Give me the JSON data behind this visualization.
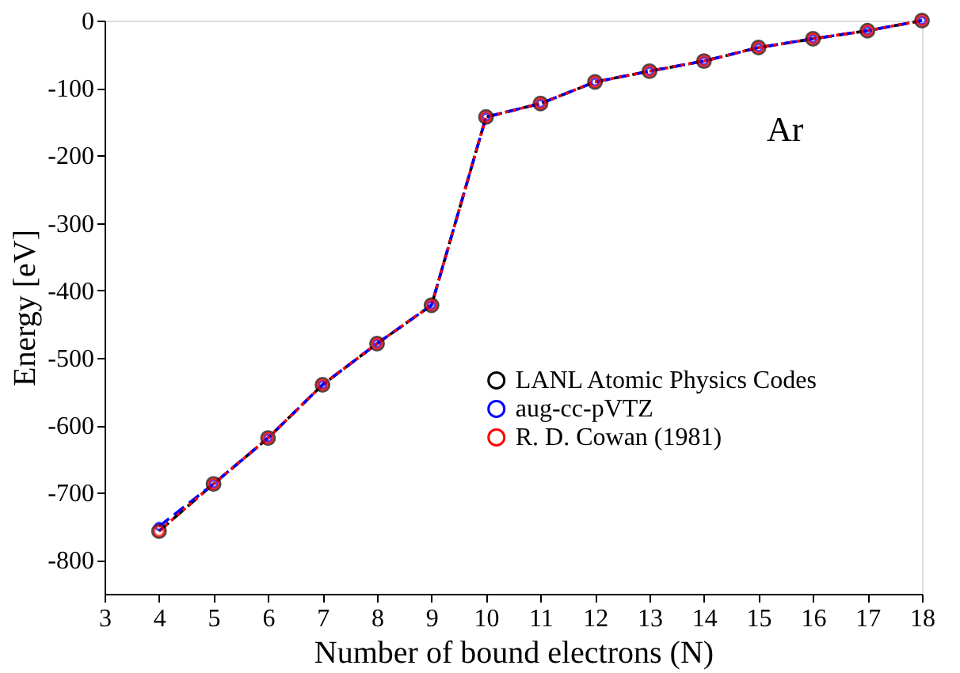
{
  "chart_data": {
    "type": "line",
    "xlabel": "Number of bound electrons (N)",
    "ylabel": "Energy [eV]",
    "annotations": [
      "Ar"
    ],
    "x": [
      4,
      5,
      6,
      7,
      8,
      9,
      10,
      11,
      12,
      13,
      14,
      15,
      16,
      17,
      18
    ],
    "series": [
      {
        "name": "LANL Atomic Physics Codes",
        "color": "#000000",
        "line_style": "dashed",
        "values": [
          -757,
          -687,
          -619,
          -540,
          -479,
          -422,
          -143,
          -123,
          -91,
          -75,
          -60,
          -40,
          -27,
          -15,
          0
        ]
      },
      {
        "name": "aug-cc-pVTZ",
        "color": "#0000ff",
        "line_style": "dashed",
        "values": [
          -750,
          -687,
          -619,
          -540,
          -479,
          -422,
          -143,
          -123,
          -91,
          -75,
          -60,
          -40,
          -27,
          -15,
          0
        ]
      },
      {
        "name": "R. D. Cowan (1981)",
        "color": "#ff0000",
        "line_style": "dotted",
        "values": [
          -757,
          -687,
          -619,
          -540,
          -479,
          -422,
          -143,
          -123,
          -91,
          -75,
          -60,
          -40,
          -27,
          -15,
          0
        ]
      }
    ],
    "marker": "circle",
    "xlim": [
      3,
      18
    ],
    "xticks": [
      3,
      4,
      5,
      6,
      7,
      8,
      9,
      10,
      11,
      12,
      13,
      14,
      15,
      16,
      17,
      18
    ],
    "ylim": [
      -850,
      0
    ],
    "yticks": [
      0,
      -100,
      -200,
      -300,
      -400,
      -500,
      -600,
      -700,
      -800
    ],
    "grid": false,
    "legend": "right"
  }
}
